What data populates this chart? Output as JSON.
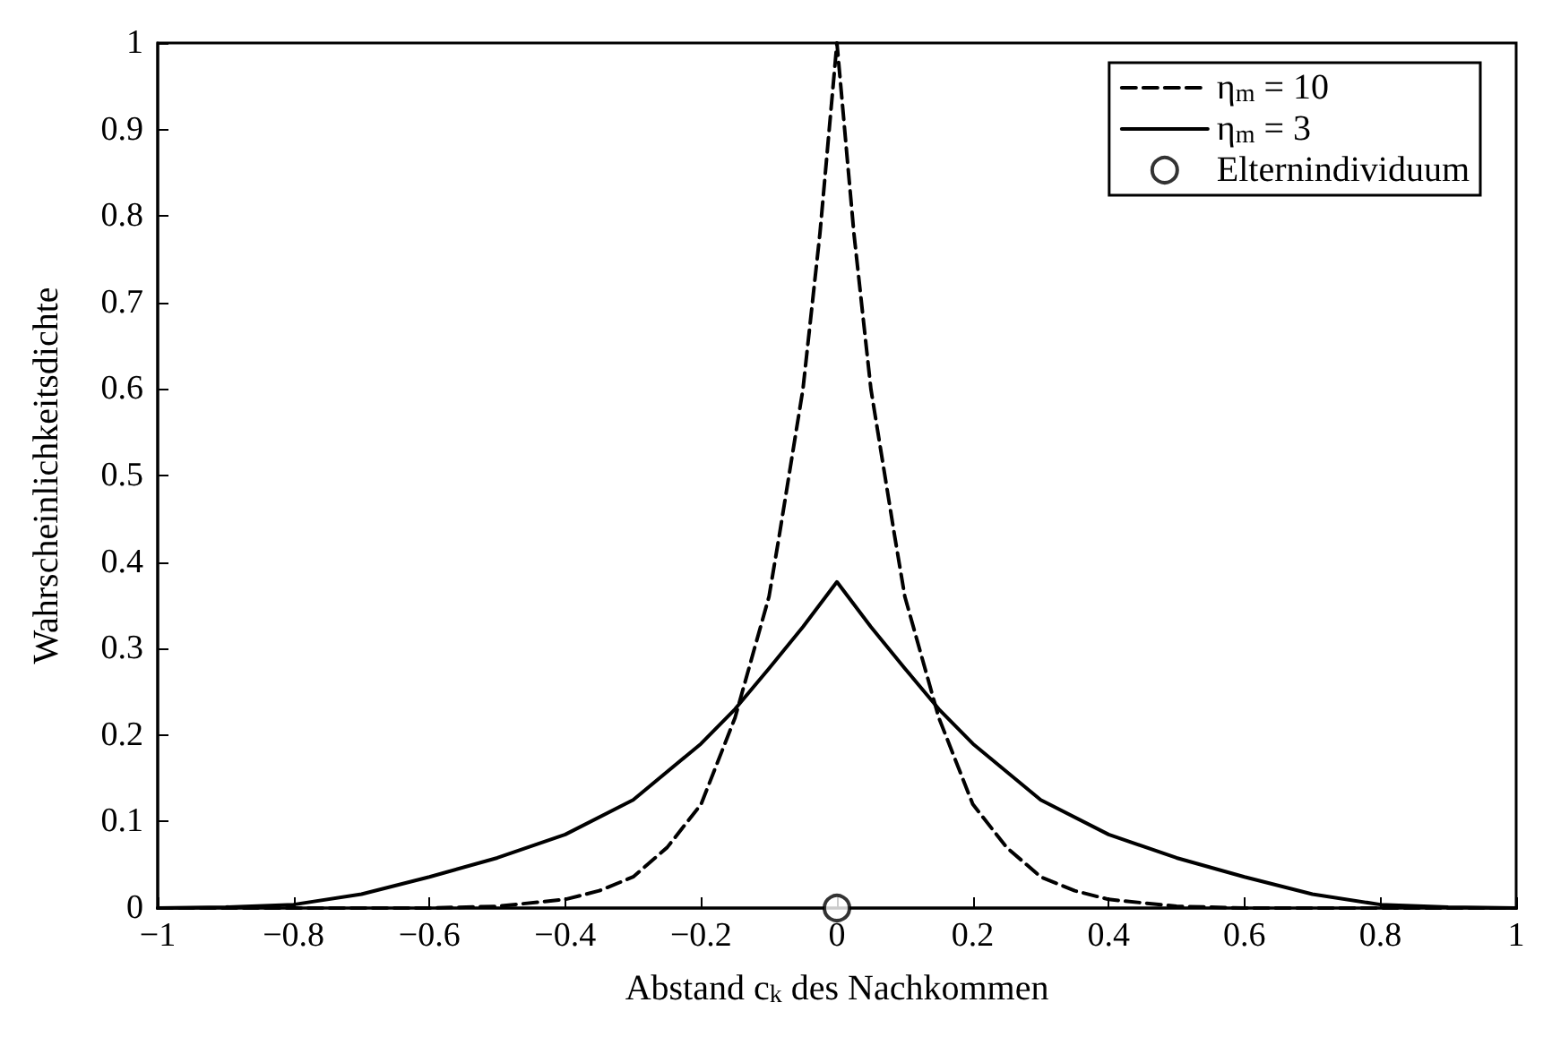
{
  "chart_data": {
    "type": "line",
    "xlabel": "Abstand c$_{k}$ des Nachkommen",
    "ylabel": "Wahrscheinlichkeitsdichte",
    "xlim": [
      -1,
      1
    ],
    "xticks": [
      -1,
      -0.8,
      -0.6,
      -0.4,
      -0.2,
      0,
      0.2,
      0.4,
      0.6,
      0.8,
      1
    ],
    "ylim": [
      0,
      1
    ],
    "yticks": [
      0,
      0.1,
      0.2,
      0.3,
      0.4,
      0.5,
      0.6,
      0.7,
      0.8,
      0.9,
      1
    ],
    "grid": false,
    "legend": "top right",
    "series": [
      {
        "name": "η$_{m}$ = 10",
        "color": "#000000",
        "line_style": "dashed",
        "marker": "none",
        "x": [
          -1,
          -0.6,
          -0.5,
          -0.4,
          -0.35,
          -0.3,
          -0.25,
          -0.2,
          -0.15,
          -0.1,
          -0.085,
          -0.05,
          -0.025,
          0,
          0.025,
          0.05,
          0.085,
          0.1,
          0.15,
          0.2,
          0.25,
          0.3,
          0.35,
          0.4,
          0.5,
          0.6,
          1
        ],
        "values": [
          0,
          0,
          0.002,
          0.01,
          0.02,
          0.036,
          0.07,
          0.12,
          0.22,
          0.36,
          0.43,
          0.6,
          0.78,
          1,
          0.78,
          0.6,
          0.43,
          0.36,
          0.22,
          0.12,
          0.07,
          0.036,
          0.02,
          0.01,
          0.002,
          0,
          0
        ]
      },
      {
        "name": "η$_{m}$ = 3",
        "color": "#000000",
        "line_style": "solid",
        "marker": "none",
        "x": [
          -1,
          -0.9,
          -0.8,
          -0.7,
          -0.6,
          -0.5,
          -0.4,
          -0.3,
          -0.2,
          -0.15,
          -0.1,
          -0.05,
          0,
          0.05,
          0.1,
          0.15,
          0.2,
          0.3,
          0.4,
          0.5,
          0.6,
          0.7,
          0.8,
          0.9,
          1
        ],
        "values": [
          0,
          0.001,
          0.004,
          0.016,
          0.036,
          0.058,
          0.085,
          0.125,
          0.19,
          0.23,
          0.277,
          0.325,
          0.377,
          0.325,
          0.277,
          0.23,
          0.19,
          0.125,
          0.085,
          0.058,
          0.036,
          0.016,
          0.004,
          0.001,
          0
        ]
      },
      {
        "name": "Elternindividuum",
        "type": "scatter",
        "color": "#000000",
        "marker": "circle",
        "x": [
          0
        ],
        "values": [
          0
        ]
      }
    ]
  }
}
